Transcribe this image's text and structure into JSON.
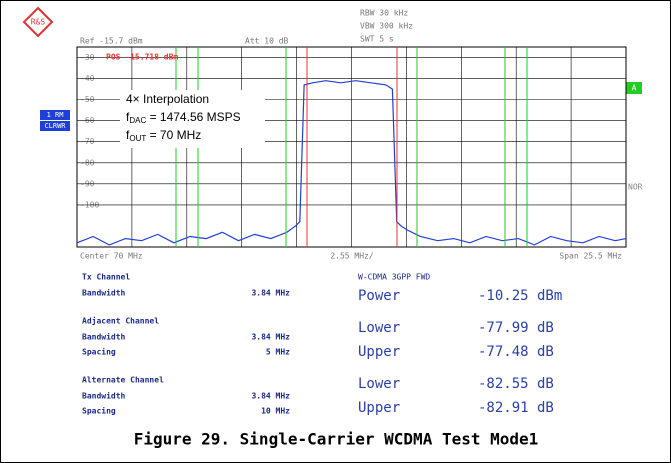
{
  "header": {
    "ref": "Ref -15.7 dBm",
    "att": "Att 10 dB",
    "rbw": "RBW 30 kHz",
    "vbw": "VBW 300 kHz",
    "swt": "SWT 5 s",
    "marker": "POS -15.718 dBm",
    "trace_mode_1": "1 RM",
    "trace_mode_2": "CLRWR",
    "a": "A",
    "nor": "NOR",
    "center": "Center 70 MHz",
    "per_div": "2.55 MHz/",
    "span": "Span 25.5 MHz"
  },
  "annotation": {
    "line1": "4× Interpolation",
    "f1": "f",
    "f1_sub": "DAC",
    "f1_rest": " = 1474.56 MSPS",
    "f2": "f",
    "f2_sub": "OUT",
    "f2_rest": " = 70 MHz"
  },
  "table": {
    "left": [
      [
        "Tx Channel",
        ""
      ],
      [
        "Bandwidth",
        "3.84 MHz"
      ],
      [
        "Adjacent Channel",
        ""
      ],
      [
        "Bandwidth",
        "3.84 MHz"
      ],
      [
        "Spacing",
        "5 MHz"
      ],
      [
        "Alternate Channel",
        ""
      ],
      [
        "Bandwidth",
        "3.84 MHz"
      ],
      [
        "Spacing",
        "10 MHz"
      ]
    ],
    "right_title": "W-CDMA 3GPP FWD",
    "right": [
      [
        "Power",
        "-10.25 dBm"
      ],
      [
        "Lower",
        "-77.99 dB"
      ],
      [
        "Upper",
        "-77.48 dB"
      ],
      [
        "Lower",
        "-82.55 dB"
      ],
      [
        "Upper",
        "-82.91 dB"
      ]
    ]
  },
  "caption": "Figure 29. Single-Carrier WCDMA Test Mode1",
  "chart_data": {
    "type": "line",
    "x": [
      57.25,
      58,
      58.75,
      59.5,
      60.25,
      61,
      61.75,
      62.5,
      63.25,
      64,
      64.75,
      65.5,
      66.25,
      67,
      67.4,
      67.6,
      67.8,
      68.2,
      68.8,
      69.5,
      70.2,
      70.9,
      71.6,
      71.9,
      72.1,
      72.3,
      72.6,
      73.2,
      74,
      74.75,
      75.5,
      76.25,
      77,
      77.75,
      78.5,
      79.25,
      80,
      80.75,
      81.5,
      82.25,
      82.75
    ],
    "series": [
      {
        "color": "#1f3fd8",
        "values": [
          -118,
          -115,
          -119,
          -116,
          -117,
          -114,
          -118,
          -115,
          -116,
          -113,
          -117,
          -114,
          -116,
          -113,
          -110,
          -108,
          -43,
          -42,
          -41,
          -42,
          -41,
          -42,
          -43,
          -45,
          -108,
          -110,
          -112,
          -115,
          -117,
          -116,
          -118,
          -115,
          -117,
          -116,
          -119,
          -115,
          -117,
          -118,
          -115,
          -117,
          -116
        ]
      }
    ],
    "xlim": [
      57.25,
      82.75
    ],
    "ylim": [
      -120,
      -25
    ],
    "yticks": [
      -30,
      -40,
      -50,
      -60,
      -70,
      -80,
      -90,
      -100
    ],
    "xticks": [
      57.25,
      59.8,
      62.35,
      64.9,
      67.45,
      70,
      72.55,
      75.1,
      77.65,
      80.2,
      82.75
    ],
    "grid": true
  }
}
